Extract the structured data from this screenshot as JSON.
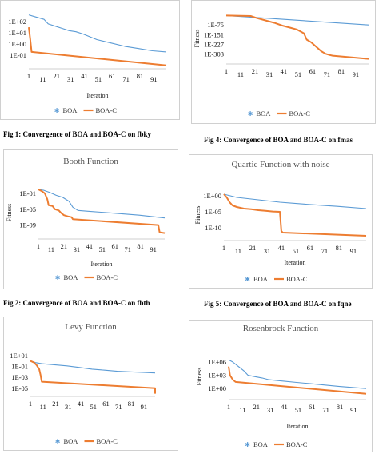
{
  "captions": [
    "Fig 1: Convergence of BOA and BOA-C on fbky",
    "Fig 4: Convergence of BOA and BOA-C on fmas",
    "Fig 2: Convergence of BOA and BOA-C on fbth",
    "Fig 5: Convergence of BOA and BOA-C on fqne"
  ],
  "colors": {
    "boa": "#5B9BD5",
    "boac": "#ED7D31"
  },
  "chart_data": [
    {
      "type": "line",
      "title": "",
      "xlabel": "Iteration",
      "ylabel": "",
      "yscale": "log",
      "x_ticks": [
        "1",
        "11",
        "21",
        "31",
        "41",
        "51",
        "61",
        "71",
        "81",
        "91"
      ],
      "y_ticks": [
        "1E+02",
        "1E+01",
        "1E+00",
        "1E-01"
      ],
      "y_tick_exp": [
        2,
        1,
        0,
        -1
      ],
      "ylim_exp": [
        -2.2,
        3.5
      ],
      "series": [
        {
          "name": "BOA",
          "x": [
            1,
            5,
            12,
            15,
            20,
            25,
            30,
            35,
            40,
            50,
            60,
            70,
            80,
            90,
            100
          ],
          "y_exp": [
            2.6,
            2.45,
            2.2,
            1.8,
            1.6,
            1.4,
            1.2,
            1.1,
            0.9,
            0.4,
            0.1,
            -0.2,
            -0.4,
            -0.6,
            -0.7
          ]
        },
        {
          "name": "BOA-C",
          "x": [
            1,
            2,
            3,
            100
          ],
          "y_exp": [
            1.5,
            0.5,
            -0.7,
            -1.9
          ]
        }
      ],
      "legend": [
        "BOA",
        "BOA-C"
      ]
    },
    {
      "type": "line",
      "title": "",
      "xlabel": "",
      "ylabel": "Fitness",
      "yscale": "log",
      "x_ticks": [
        "1",
        "11",
        "21",
        "31",
        "41",
        "51",
        "61",
        "71",
        "81",
        "91"
      ],
      "y_ticks": [
        "1E-75",
        "1E-151",
        "1E-227",
        "1E-303"
      ],
      "y_tick_exp": [
        -75,
        -151,
        -227,
        -303
      ],
      "ylim_exp": [
        -380,
        20
      ],
      "series": [
        {
          "name": "BOA",
          "x": [
            1,
            100
          ],
          "y_exp": [
            -1,
            -75
          ]
        },
        {
          "name": "BOA-C",
          "x": [
            1,
            18,
            22,
            30,
            35,
            40,
            45,
            50,
            55,
            57,
            60,
            62,
            65,
            67,
            70,
            73,
            75,
            100
          ],
          "y_exp": [
            -1,
            -5,
            -20,
            -45,
            -60,
            -80,
            -95,
            -110,
            -140,
            -190,
            -210,
            -230,
            -260,
            -280,
            -300,
            -310,
            -315,
            -340
          ]
        }
      ],
      "legend": [
        "BOA",
        "BOA-C"
      ]
    },
    {
      "type": "line",
      "title": "Booth Function",
      "xlabel": "Iteration",
      "ylabel": "Fitness",
      "yscale": "log",
      "x_ticks": [
        "1",
        "11",
        "21",
        "31",
        "41",
        "51",
        "61",
        "71",
        "81",
        "91"
      ],
      "y_ticks": [
        "1E-01",
        "1E-05",
        "1E-09"
      ],
      "y_tick_exp": [
        -1,
        -5,
        -9
      ],
      "ylim_exp": [
        -12.5,
        0.8
      ],
      "series": [
        {
          "name": "BOA",
          "x": [
            1,
            5,
            10,
            15,
            20,
            25,
            28,
            32,
            40,
            60,
            80,
            100
          ],
          "y_exp": [
            0,
            -0.2,
            -0.8,
            -1.5,
            -2,
            -3,
            -4.5,
            -5.3,
            -5.5,
            -6,
            -6.5,
            -7.2
          ]
        },
        {
          "name": "BOA-C",
          "x": [
            1,
            4,
            6,
            8,
            9,
            12,
            14,
            17,
            19,
            21,
            24,
            27,
            28,
            95,
            96,
            100
          ],
          "y_exp": [
            0,
            -0.5,
            -1,
            -2.5,
            -4,
            -4.2,
            -5,
            -5.3,
            -6,
            -6.5,
            -6.8,
            -7,
            -7.5,
            -9,
            -10.8,
            -11
          ]
        }
      ],
      "legend": [
        "BOA",
        "BOA-C"
      ]
    },
    {
      "type": "line",
      "title": "Quartic Function with noise",
      "xlabel": "Iteration",
      "ylabel": "Fitness",
      "yscale": "log",
      "x_ticks": [
        "1",
        "11",
        "21",
        "31",
        "41",
        "51",
        "61",
        "71",
        "81",
        "91"
      ],
      "y_ticks": [
        "1E+00",
        "1E-05",
        "1E-10"
      ],
      "y_tick_exp": [
        0,
        -5,
        -10
      ],
      "ylim_exp": [
        -14,
        2
      ],
      "series": [
        {
          "name": "BOA",
          "x": [
            1,
            10,
            20,
            40,
            60,
            80,
            100
          ],
          "y_exp": [
            0.5,
            -0.5,
            -1,
            -2,
            -2.7,
            -3.3,
            -4
          ]
        },
        {
          "name": "BOA-C",
          "x": [
            1,
            3,
            5,
            7,
            10,
            15,
            20,
            25,
            30,
            35,
            40,
            41,
            42,
            100
          ],
          "y_exp": [
            0.5,
            -0.5,
            -2,
            -3,
            -3.5,
            -4,
            -4.2,
            -4.5,
            -4.7,
            -4.9,
            -5,
            -11,
            -11.5,
            -12.5
          ]
        }
      ],
      "legend": [
        "BOA",
        "BOA-C"
      ]
    },
    {
      "type": "line",
      "title": "Levy Function",
      "xlabel": "",
      "ylabel": "",
      "yscale": "log",
      "x_ticks": [
        "1",
        "11",
        "21",
        "31",
        "41",
        "51",
        "61",
        "71",
        "81",
        "91"
      ],
      "y_ticks": [
        "1E+01",
        "1E-01",
        "1E-03",
        "1E-05"
      ],
      "y_tick_exp": [
        1,
        -1,
        -3,
        -5
      ],
      "ylim_exp": [
        -6.5,
        2
      ],
      "series": [
        {
          "name": "BOA",
          "x": [
            1,
            5,
            10,
            20,
            30,
            40,
            50,
            60,
            70,
            80,
            90,
            100
          ],
          "y_exp": [
            0,
            -0.3,
            -0.5,
            -0.7,
            -0.9,
            -1.2,
            -1.5,
            -1.7,
            -1.9,
            -2,
            -2.1,
            -2.2
          ]
        },
        {
          "name": "BOA-C",
          "x": [
            1,
            4,
            6,
            8,
            9,
            10,
            100,
            101
          ],
          "y_exp": [
            0,
            -0.3,
            -0.8,
            -1.5,
            -2.5,
            -3.8,
            -5,
            -6
          ]
        }
      ],
      "legend": [
        "BOA",
        "BOA-C"
      ]
    },
    {
      "type": "line",
      "title": "Rosenbrock Function",
      "xlabel": "Iteration",
      "ylabel": "Fitness",
      "yscale": "log",
      "x_ticks": [
        "1",
        "11",
        "21",
        "31",
        "41",
        "51",
        "61",
        "71",
        "81",
        "91"
      ],
      "y_ticks": [
        "1E+06",
        "1E+03",
        "1E+00"
      ],
      "y_tick_exp": [
        6,
        3,
        0
      ],
      "ylim_exp": [
        -2.5,
        8
      ],
      "series": [
        {
          "name": "BOA",
          "x": [
            1,
            4,
            8,
            12,
            15,
            20,
            25,
            30,
            40,
            50,
            60,
            80,
            100
          ],
          "y_exp": [
            6.5,
            6,
            5,
            4,
            3,
            2.7,
            2.4,
            2,
            1.7,
            1.4,
            1.1,
            0.5,
            0
          ]
        },
        {
          "name": "BOA-C",
          "x": [
            1,
            2,
            4,
            6,
            100
          ],
          "y_exp": [
            5,
            3,
            2,
            1.5,
            -1.2
          ]
        }
      ],
      "legend": [
        "BOA",
        "BOA-C"
      ]
    }
  ]
}
